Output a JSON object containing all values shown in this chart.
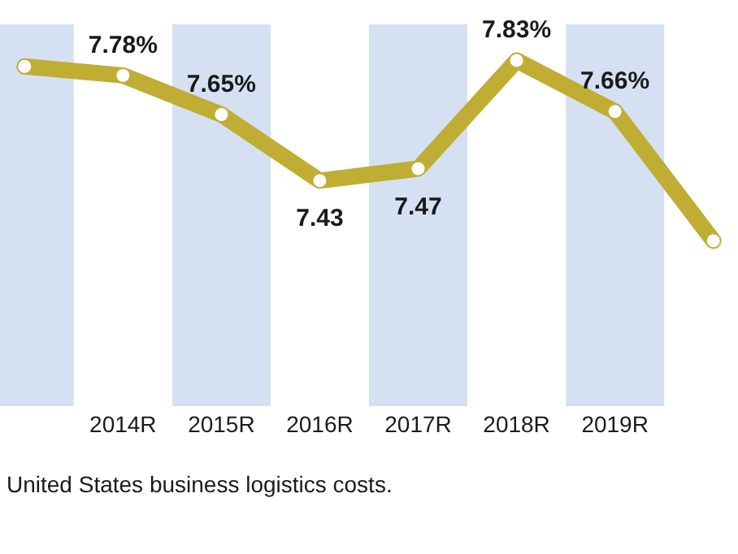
{
  "chart_data": {
    "type": "line",
    "categories": [
      null,
      "2014R",
      "2015R",
      "2016R",
      "2017R",
      "2018R",
      "2019R",
      null
    ],
    "series": [
      {
        "color": "#bfae33",
        "values": [
          7.81,
          7.78,
          7.65,
          7.43,
          7.47,
          7.83,
          7.66,
          7.23
        ],
        "value_labels": [
          null,
          "7.78%",
          "7.65%",
          "7.43",
          "7.47",
          "7.83%",
          "7.66%",
          null
        ]
      }
    ],
    "marker": "circle",
    "line_style": "solid",
    "grid": false,
    "legend": false,
    "bands": [
      {
        "axis": "x",
        "from": "2015R",
        "to": "2015R",
        "color": "#d5e1f2"
      },
      {
        "axis": "x",
        "from": "2017R",
        "to": "2017R",
        "color": "#d5e1f2"
      },
      {
        "axis": "x",
        "from": "2019R",
        "to": "2019R",
        "color": "#d5e1f2"
      }
    ],
    "annotations": [
      "United States business logistics costs."
    ]
  }
}
